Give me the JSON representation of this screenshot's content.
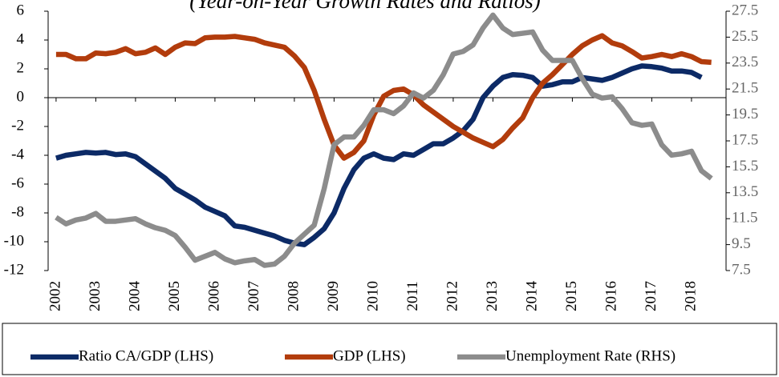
{
  "chart_data": {
    "type": "line",
    "title": "(Year-on-Year Growth Rates and Ratios)",
    "x": [
      2002,
      2002.25,
      2002.5,
      2002.75,
      2003,
      2003.25,
      2003.5,
      2003.75,
      2004,
      2004.25,
      2004.5,
      2004.75,
      2005,
      2005.25,
      2005.5,
      2005.75,
      2006,
      2006.25,
      2006.5,
      2006.75,
      2007,
      2007.25,
      2007.5,
      2007.75,
      2008,
      2008.25,
      2008.5,
      2008.75,
      2009,
      2009.25,
      2009.5,
      2009.75,
      2010,
      2010.25,
      2010.5,
      2010.75,
      2011,
      2011.25,
      2011.5,
      2011.75,
      2012,
      2012.25,
      2012.5,
      2012.75,
      2013,
      2013.25,
      2013.5,
      2013.75,
      2014,
      2014.25,
      2014.5,
      2014.75,
      2015,
      2015.25,
      2015.5,
      2015.75,
      2016,
      2016.25,
      2016.5,
      2016.75,
      2017,
      2017.25,
      2017.5,
      2017.75,
      2018,
      2018.25,
      2018.5
    ],
    "series": [
      {
        "name": "Ratio CA/GDP (LHS)",
        "color": "#0c2a66",
        "axis": "y",
        "values": [
          -4.2,
          -4.0,
          -3.9,
          -3.8,
          -3.85,
          -3.8,
          -3.95,
          -3.9,
          -4.1,
          -4.6,
          -5.1,
          -5.6,
          -6.3,
          -6.7,
          -7.1,
          -7.6,
          -7.9,
          -8.2,
          -8.9,
          -9.0,
          -9.2,
          -9.4,
          -9.6,
          -9.9,
          -10.1,
          -10.2,
          -9.7,
          -9.1,
          -8.0,
          -6.3,
          -5.0,
          -4.2,
          -3.9,
          -4.2,
          -4.3,
          -3.9,
          -4.0,
          -3.6,
          -3.2,
          -3.2,
          -2.8,
          -2.3,
          -1.5,
          0.0,
          0.8,
          1.4,
          1.6,
          1.55,
          1.4,
          0.8,
          0.9,
          1.1,
          1.1,
          1.4,
          1.3,
          1.2,
          1.4,
          1.7,
          2.0,
          2.2,
          2.15,
          2.05,
          1.85,
          1.85,
          1.75,
          1.4,
          null
        ]
      },
      {
        "name": "GDP (LHS)",
        "color": "#b23c0c",
        "axis": "y",
        "values": [
          3.0,
          3.0,
          2.7,
          2.7,
          3.1,
          3.05,
          3.15,
          3.4,
          3.05,
          3.15,
          3.45,
          3.0,
          3.5,
          3.8,
          3.75,
          4.15,
          4.2,
          4.2,
          4.25,
          4.15,
          4.05,
          3.8,
          3.65,
          3.5,
          2.9,
          2.1,
          0.5,
          -1.5,
          -3.3,
          -4.2,
          -3.8,
          -3.0,
          -1.2,
          0.1,
          0.5,
          0.6,
          0.2,
          -0.5,
          -1.0,
          -1.5,
          -2.0,
          -2.4,
          -2.8,
          -3.1,
          -3.4,
          -2.9,
          -2.1,
          -1.4,
          0.0,
          1.0,
          1.6,
          2.3,
          3.0,
          3.6,
          4.0,
          4.3,
          3.8,
          3.6,
          3.2,
          2.75,
          2.85,
          3.0,
          2.85,
          3.05,
          2.85,
          2.5,
          2.45
        ]
      },
      {
        "name": "Unemployment Rate (RHS)",
        "color": "#8c8c8c",
        "axis": "y2",
        "values": [
          11.6,
          11.1,
          11.4,
          11.55,
          11.9,
          11.3,
          11.3,
          11.4,
          11.5,
          11.1,
          10.8,
          10.6,
          10.2,
          9.3,
          8.3,
          8.6,
          8.9,
          8.4,
          8.1,
          8.25,
          8.35,
          7.9,
          8.0,
          8.6,
          9.6,
          10.3,
          11.0,
          13.8,
          17.2,
          17.8,
          17.8,
          18.7,
          19.9,
          19.9,
          19.6,
          20.2,
          21.2,
          20.8,
          21.4,
          22.6,
          24.2,
          24.4,
          24.9,
          26.2,
          27.2,
          26.2,
          25.7,
          25.8,
          25.9,
          24.5,
          23.7,
          23.7,
          23.7,
          22.3,
          21.1,
          20.8,
          20.9,
          20.0,
          18.9,
          18.7,
          18.8,
          17.2,
          16.4,
          16.5,
          16.7,
          15.2,
          14.6
        ]
      }
    ],
    "xlim": [
      2001.8,
      2018.87
    ],
    "xticks": [
      2002,
      2003,
      2004,
      2005,
      2006,
      2007,
      2008,
      2009,
      2010,
      2011,
      2012,
      2013,
      2014,
      2015,
      2016,
      2017,
      2018
    ],
    "ylim": [
      -12,
      6
    ],
    "yticks": [
      -12,
      -10,
      -8,
      -6,
      -4,
      -2,
      0,
      2,
      4,
      6
    ],
    "y2lim": [
      7.5,
      27.5
    ],
    "y2ticks": [
      7.5,
      9.5,
      11.5,
      13.5,
      15.5,
      17.5,
      19.5,
      21.5,
      23.5,
      25.5,
      27.5
    ],
    "legend": "bottom"
  }
}
